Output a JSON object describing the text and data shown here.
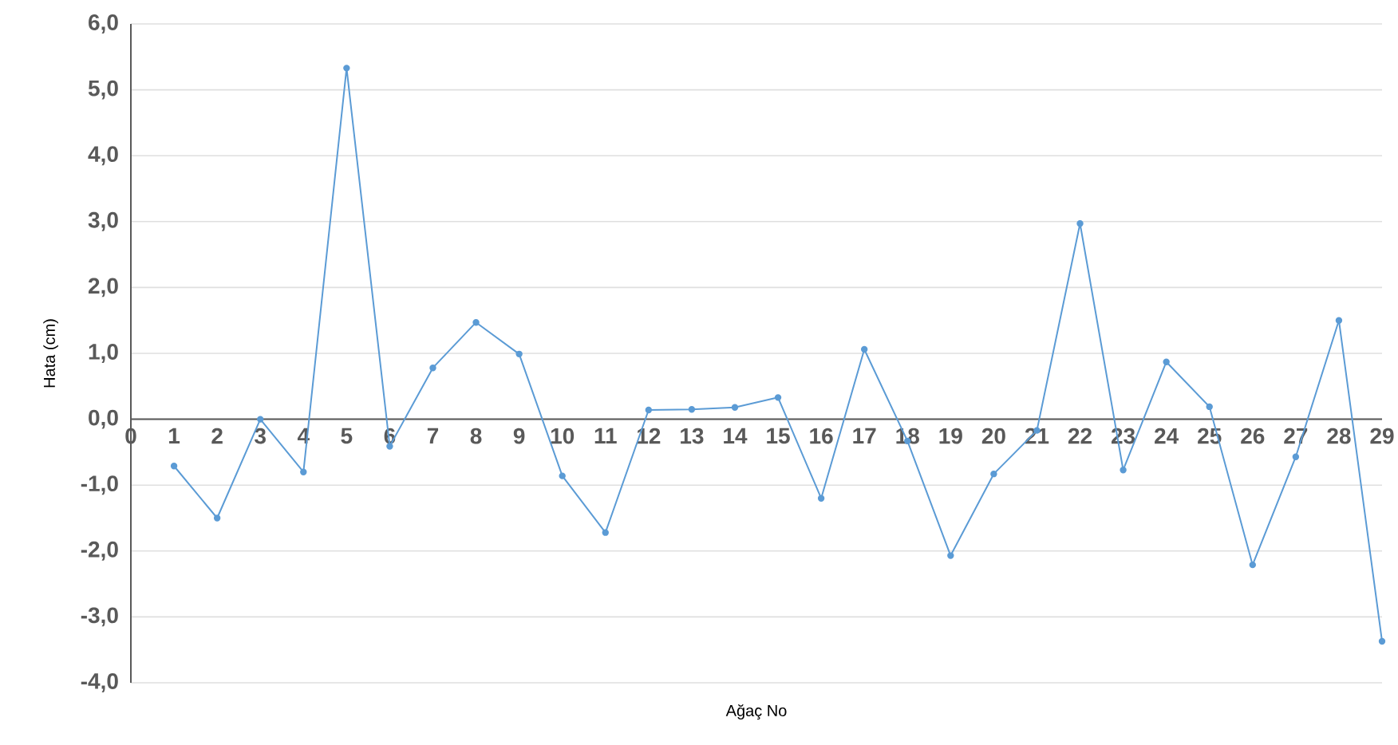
{
  "chart_data": {
    "type": "line",
    "xlabel": "Ağaç No",
    "ylabel": "Hata (cm)",
    "x": [
      1,
      2,
      3,
      4,
      5,
      6,
      7,
      8,
      9,
      10,
      11,
      12,
      13,
      14,
      15,
      16,
      17,
      18,
      19,
      20,
      21,
      22,
      23,
      24,
      25,
      26,
      27,
      28,
      29
    ],
    "series": [
      {
        "color": "#5b9bd5",
        "values": [
          -0.71,
          -1.5,
          0.0,
          -0.8,
          5.33,
          -0.41,
          0.78,
          1.47,
          0.99,
          -0.86,
          -1.72,
          0.14,
          0.15,
          0.18,
          0.33,
          -1.2,
          1.06,
          -0.33,
          -2.07,
          -0.83,
          -0.17,
          2.97,
          -0.77,
          0.87,
          0.19,
          -2.21,
          -0.57,
          1.5,
          -3.37
        ]
      }
    ],
    "xlim": [
      0,
      29
    ],
    "xticks": [
      0,
      1,
      2,
      3,
      4,
      5,
      6,
      7,
      8,
      9,
      10,
      11,
      12,
      13,
      14,
      15,
      16,
      17,
      18,
      19,
      20,
      21,
      22,
      23,
      24,
      25,
      26,
      27,
      28,
      29
    ],
    "ylim": [
      -4,
      6
    ],
    "yticks": [
      {
        "value": 6,
        "label": "6,0"
      },
      {
        "value": 5,
        "label": "5,0"
      },
      {
        "value": 4,
        "label": "4,0"
      },
      {
        "value": 3,
        "label": "3,0"
      },
      {
        "value": 2,
        "label": "2,0"
      },
      {
        "value": 1,
        "label": "1,0"
      },
      {
        "value": 0,
        "label": "0,0"
      },
      {
        "value": -1,
        "label": "-1,0"
      },
      {
        "value": -2,
        "label": "-2,0"
      },
      {
        "value": -3,
        "label": "-3,0"
      },
      {
        "value": -4,
        "label": "-4,0"
      }
    ],
    "grid": "y",
    "marker": "circle",
    "line_style": "solid"
  }
}
